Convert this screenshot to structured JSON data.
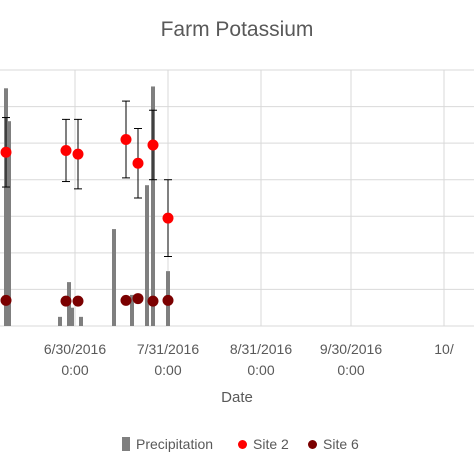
{
  "chart_data": {
    "type": "scatter",
    "title": "Farm Potassium",
    "xlabel": "Date",
    "ylabel": "",
    "x_ticks": [
      {
        "line1": "6/30/2016",
        "line2": "0:00"
      },
      {
        "line1": "7/31/2016",
        "line2": "0:00"
      },
      {
        "line1": "8/31/2016",
        "line2": "0:00"
      },
      {
        "line1": "9/30/2016",
        "line2": "0:00"
      },
      {
        "line1": "10/",
        "line2": ""
      }
    ],
    "x_tick_dates": [
      "2016-06-30",
      "2016-07-31",
      "2016-08-31",
      "2016-09-30",
      "2016-10-31"
    ],
    "xlim": [
      "2016-06-05",
      "2016-11-10"
    ],
    "ylim": [
      0,
      7
    ],
    "grid": true,
    "legend_position": "bottom",
    "series": [
      {
        "name": "Precipitation",
        "kind": "bar",
        "color": "#7f7f7f",
        "points": [
          {
            "x": "2016-06-07",
            "y": 6.5
          },
          {
            "x": "2016-06-08",
            "y": 5.6
          },
          {
            "x": "2016-06-25",
            "y": 0.25
          },
          {
            "x": "2016-06-28",
            "y": 1.2
          },
          {
            "x": "2016-06-29",
            "y": 0.5
          },
          {
            "x": "2016-07-02",
            "y": 0.25
          },
          {
            "x": "2016-07-13",
            "y": 2.65
          },
          {
            "x": "2016-07-19",
            "y": 0.85
          },
          {
            "x": "2016-07-24",
            "y": 3.85
          },
          {
            "x": "2016-07-26",
            "y": 6.55
          },
          {
            "x": "2016-07-31",
            "y": 1.5
          }
        ]
      },
      {
        "name": "Site 2",
        "kind": "scatter",
        "color": "#ff0000",
        "points": [
          {
            "x": "2016-06-07",
            "y": 4.75,
            "err": 0.95
          },
          {
            "x": "2016-06-27",
            "y": 4.8,
            "err": 0.85
          },
          {
            "x": "2016-07-01",
            "y": 4.7,
            "err": 0.95
          },
          {
            "x": "2016-07-17",
            "y": 5.1,
            "err": 1.05
          },
          {
            "x": "2016-07-21",
            "y": 4.45,
            "err": 0.95
          },
          {
            "x": "2016-07-26",
            "y": 4.95,
            "err": 0.95
          },
          {
            "x": "2016-07-31",
            "y": 2.95,
            "err": 1.05
          }
        ]
      },
      {
        "name": "Site 6",
        "kind": "scatter",
        "color": "#7b0000",
        "points": [
          {
            "x": "2016-06-07",
            "y": 0.7
          },
          {
            "x": "2016-06-27",
            "y": 0.68
          },
          {
            "x": "2016-07-01",
            "y": 0.68
          },
          {
            "x": "2016-07-17",
            "y": 0.7
          },
          {
            "x": "2016-07-21",
            "y": 0.75
          },
          {
            "x": "2016-07-26",
            "y": 0.68
          },
          {
            "x": "2016-07-31",
            "y": 0.7
          }
        ]
      }
    ]
  },
  "colors": {
    "grid": "#d9d9d9",
    "text": "#595959",
    "errorbar": "#000000"
  }
}
